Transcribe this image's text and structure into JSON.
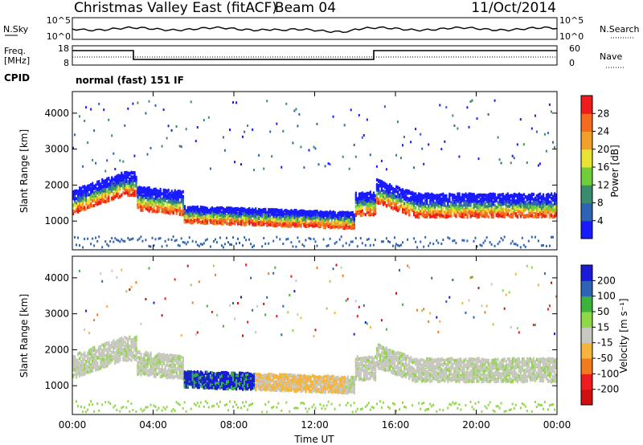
{
  "header": {
    "title": "Christmas Valley East (fitACF)",
    "beam": "Beam 04",
    "date": "11/Oct/2014"
  },
  "mini_panels": {
    "nsky_label": "N.Sky",
    "nsky_ticks": [
      "10^5",
      "10^0"
    ],
    "nsearch_label": "N.Search",
    "nsearch_ticks": [
      "10^5",
      "10^0"
    ],
    "freq_label_line1": "Freq.",
    "freq_label_line2": "[MHz]",
    "freq_ticks": [
      "18",
      "8"
    ],
    "nave_label": "Nave",
    "nave_ticks": [
      "60",
      "0"
    ],
    "cpid_label": "CPID",
    "cpid_text": "normal (fast) 151 IF"
  },
  "chart_data": [
    {
      "type": "heatmap",
      "panel": "power",
      "ylabel": "Slant Range [km]",
      "yticks": [
        "1000",
        "2000",
        "3000",
        "4000"
      ],
      "ylim": [
        200,
        4600
      ],
      "xticks": [
        "00:00",
        "04:00",
        "08:00",
        "12:00",
        "16:00",
        "20:00",
        "00:00"
      ],
      "xlim": [
        0,
        24
      ],
      "colorbar": {
        "label": "Power [dB]",
        "ticks": [
          "4",
          "8",
          "12",
          "16",
          "20",
          "24",
          "28"
        ],
        "colors": [
          "#1a1aff",
          "#2f64b4",
          "#3a8c6e",
          "#6fcf3a",
          "#e9e336",
          "#f2a02c",
          "#f46a1f",
          "#ee1c1c"
        ]
      }
    },
    {
      "type": "heatmap",
      "panel": "velocity",
      "ylabel": "Slant Range [km]",
      "yticks": [
        "1000",
        "2000",
        "3000",
        "4000"
      ],
      "ylim": [
        200,
        4600
      ],
      "xticks": [
        "00:00",
        "04:00",
        "08:00",
        "12:00",
        "16:00",
        "20:00",
        "00:00"
      ],
      "xlim": [
        0,
        24
      ],
      "xlabel": "Time UT",
      "colorbar": {
        "label": "Velocity [m s⁻¹]",
        "ticks": [
          "200",
          "100",
          "50",
          "15",
          "-15",
          "-50",
          "-100",
          "-200"
        ],
        "colors": [
          "#1a1ad8",
          "#2f64b4",
          "#3cb43c",
          "#8fd846",
          "#c8c8c0",
          "#f5b43c",
          "#f27a1f",
          "#ee1c1c",
          "#d01010"
        ]
      }
    }
  ]
}
